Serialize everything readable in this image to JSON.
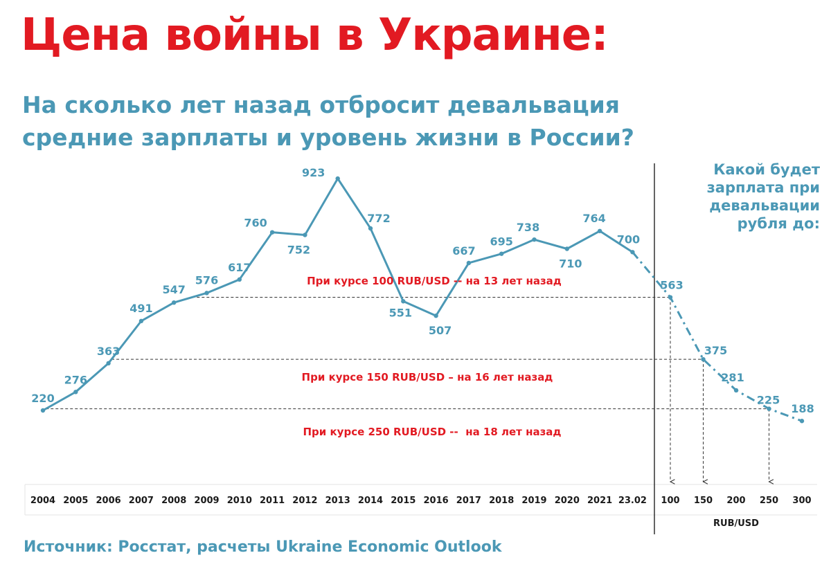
{
  "title": "Цена войны в Украине:",
  "subtitle": {
    "line1": "На сколько лет назад отбросит девальвация",
    "line2": "средние зарплаты и уровень жизни в России?"
  },
  "side_note": {
    "line1": "Какой будет",
    "line2": "зарплата при",
    "line3": "девальвации",
    "line4": "рубля до:"
  },
  "source": "Источник: Росстат, расчеты Ukraine Economic Outlook",
  "colors": {
    "title": "#e21a22",
    "accent": "#4b98b5",
    "note": "#e21a22"
  },
  "chart_data": {
    "type": "line",
    "historical": {
      "x": [
        "2004",
        "2005",
        "2006",
        "2007",
        "2008",
        "2009",
        "2010",
        "2011",
        "2012",
        "2013",
        "2014",
        "2015",
        "2016",
        "2017",
        "2018",
        "2019",
        "2020",
        "2021",
        "23.02"
      ],
      "values": [
        220,
        276,
        363,
        491,
        547,
        576,
        617,
        760,
        752,
        923,
        772,
        551,
        507,
        667,
        695,
        738,
        710,
        764,
        700
      ]
    },
    "projection": {
      "x": [
        "100",
        "150",
        "200",
        "250",
        "300"
      ],
      "values": [
        563,
        375,
        281,
        225,
        188
      ],
      "x_unit_label": "RUB/USD"
    },
    "annotations": [
      {
        "text": "При курсе 100 RUB/USD -- на 13 лет назад",
        "rate": "100",
        "value": 563
      },
      {
        "text": "При курсе 150 RUB/USD – на 16 лет назад",
        "rate": "150",
        "value": 375
      },
      {
        "text": "При курсе 250 RUB/USD --  на 18 лет назад",
        "rate": "250",
        "value": 225
      }
    ]
  }
}
